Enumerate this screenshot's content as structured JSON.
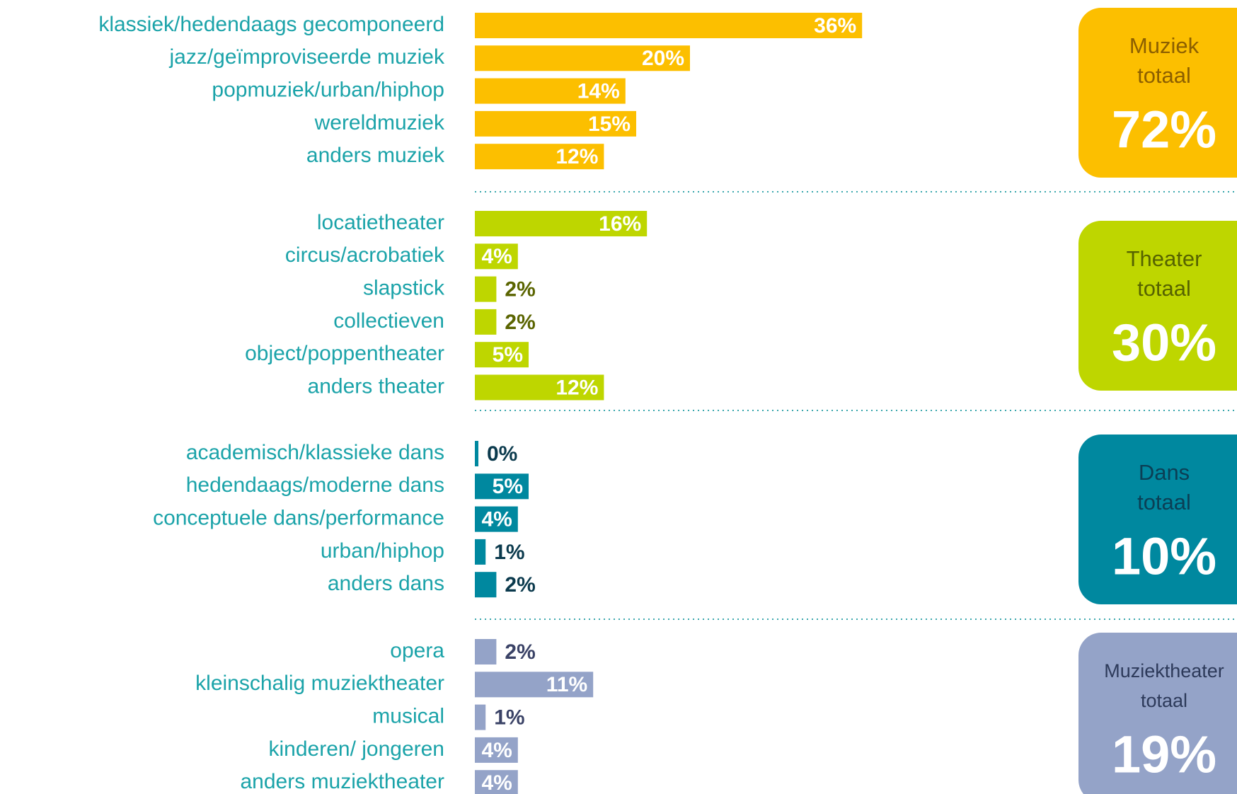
{
  "chart_data": [
    {
      "type": "bar",
      "group": "Muziek",
      "total_word": "totaal",
      "total": "72%",
      "categories": [
        "klassiek/hedendaags gecomponeerd",
        "jazz/geïmproviseerde muziek",
        "popmuziek/urban/hiphop",
        "wereldmuziek",
        "anders muziek"
      ],
      "values": [
        36,
        20,
        14,
        15,
        12
      ],
      "value_labels": [
        "36%",
        "20%",
        "14%",
        "15%",
        "12%"
      ],
      "color": "#fcbf00",
      "label_color": "#7a5400",
      "box_text_color": "#8c5f00"
    },
    {
      "type": "bar",
      "group": "Theater",
      "total_word": "totaal",
      "total": "30%",
      "categories": [
        "locatietheater",
        "circus/acrobatiek",
        "slapstick",
        "collectieven",
        "object/poppentheater",
        "anders theater"
      ],
      "values": [
        16,
        4,
        2,
        2,
        5,
        12
      ],
      "value_labels": [
        "16%",
        "4%",
        "2%",
        "2%",
        "5%",
        "12%"
      ],
      "color": "#bed600",
      "label_color": "#5a6400",
      "box_text_color": "#566300"
    },
    {
      "type": "bar",
      "group": "Dans",
      "total_word": "totaal",
      "total": "10%",
      "categories": [
        "academisch/klassieke dans",
        "hedendaags/moderne dans",
        "conceptuele dans/performance",
        "urban/hiphop",
        "anders dans"
      ],
      "values": [
        0,
        5,
        4,
        1,
        2
      ],
      "value_labels": [
        "0%",
        "5%",
        "4%",
        "1%",
        "2%"
      ],
      "color": "#00889f",
      "label_color": "#0b3a4d",
      "box_text_color": "#0b3f55"
    },
    {
      "type": "bar",
      "group": "Muziektheater",
      "total_word": "totaal",
      "total": "19%",
      "categories": [
        "opera",
        "kleinschalig muziektheater",
        "musical",
        "kinderen/ jongeren",
        "anders muziektheater"
      ],
      "values": [
        2,
        11,
        1,
        4,
        4
      ],
      "value_labels": [
        "2%",
        "11%",
        "1%",
        "4%",
        "4%"
      ],
      "color": "#94a3c8",
      "label_color": "#3a4266",
      "box_text_color": "#2d3a5a"
    }
  ]
}
